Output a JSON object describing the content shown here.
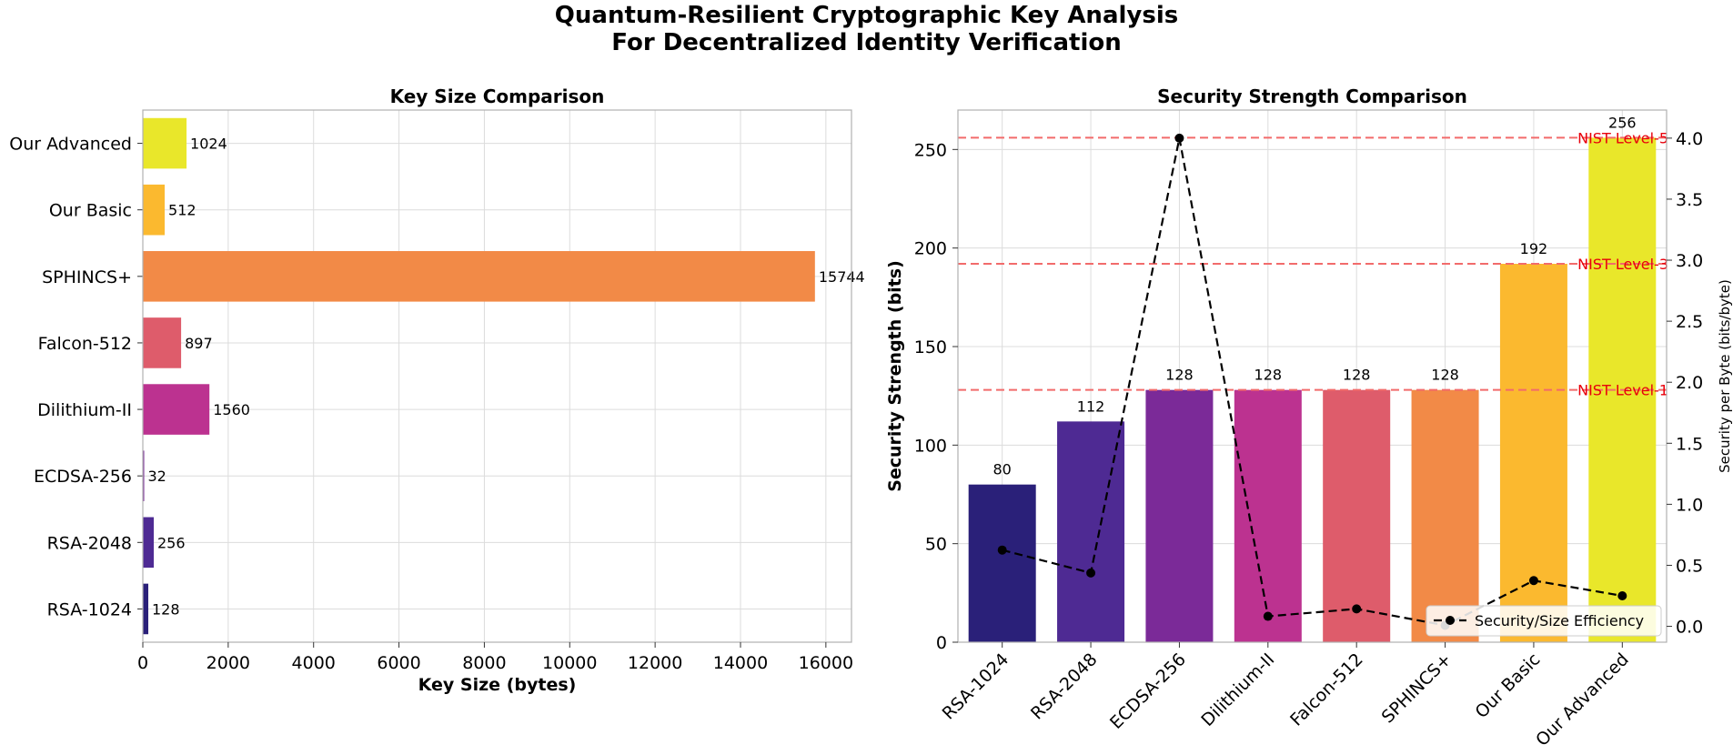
{
  "figure": {
    "title_line1": "Quantum-Resilient Cryptographic Key Analysis",
    "title_line2": "For Decentralized Identity Verification"
  },
  "chart_data": [
    {
      "type": "bar",
      "orientation": "horizontal",
      "title": "Key Size Comparison",
      "xlabel": "Key Size (bytes)",
      "ylabel": "",
      "xlim": [
        0,
        16600
      ],
      "xticks": [
        0,
        2000,
        4000,
        6000,
        8000,
        10000,
        12000,
        14000,
        16000
      ],
      "categories": [
        "RSA-1024",
        "RSA-2048",
        "ECDSA-256",
        "Dilithium-II",
        "Falcon-512",
        "SPHINCS+",
        "Our Basic",
        "Our Advanced"
      ],
      "values": [
        128,
        256,
        32,
        1560,
        897,
        15744,
        512,
        1024
      ],
      "colors": [
        "#2a2079",
        "#4e2a93",
        "#7b2a98",
        "#bc3290",
        "#de5c6b",
        "#f28a47",
        "#fbb92f",
        "#e9e72a"
      ],
      "grid": true
    },
    {
      "type": "bar+line",
      "title": "Security Strength Comparison",
      "xlabel": "",
      "ylabel": "Security Strength (bits)",
      "y2label": "Security per Byte (bits/byte)",
      "ylim": [
        0,
        270
      ],
      "yticks": [
        0,
        50,
        100,
        150,
        200,
        250
      ],
      "y2lim": [
        -0.13,
        4.23
      ],
      "y2ticks": [
        "0.0",
        "0.5",
        "1.0",
        "1.5",
        "2.0",
        "2.5",
        "3.0",
        "3.5",
        "4.0"
      ],
      "categories": [
        "RSA-1024",
        "RSA-2048",
        "ECDSA-256",
        "Dilithium-II",
        "Falcon-512",
        "SPHINCS+",
        "Our Basic",
        "Our Advanced"
      ],
      "values": [
        80,
        112,
        128,
        128,
        128,
        128,
        192,
        256
      ],
      "colors": [
        "#2a2079",
        "#4e2a93",
        "#7b2a98",
        "#bc3290",
        "#de5c6b",
        "#f28a47",
        "#fbb92f",
        "#e9e72a"
      ],
      "efficiency": [
        0.625,
        0.4375,
        4.0,
        0.082,
        0.143,
        0.008,
        0.375,
        0.25
      ],
      "line_label": "Security/Size Efficiency",
      "reference_lines": [
        {
          "value": 128,
          "label": "NIST Level-1"
        },
        {
          "value": 192,
          "label": "NIST Level-3"
        },
        {
          "value": 256,
          "label": "NIST Level-5"
        }
      ],
      "legend_position": "lower-right",
      "grid": true
    }
  ]
}
